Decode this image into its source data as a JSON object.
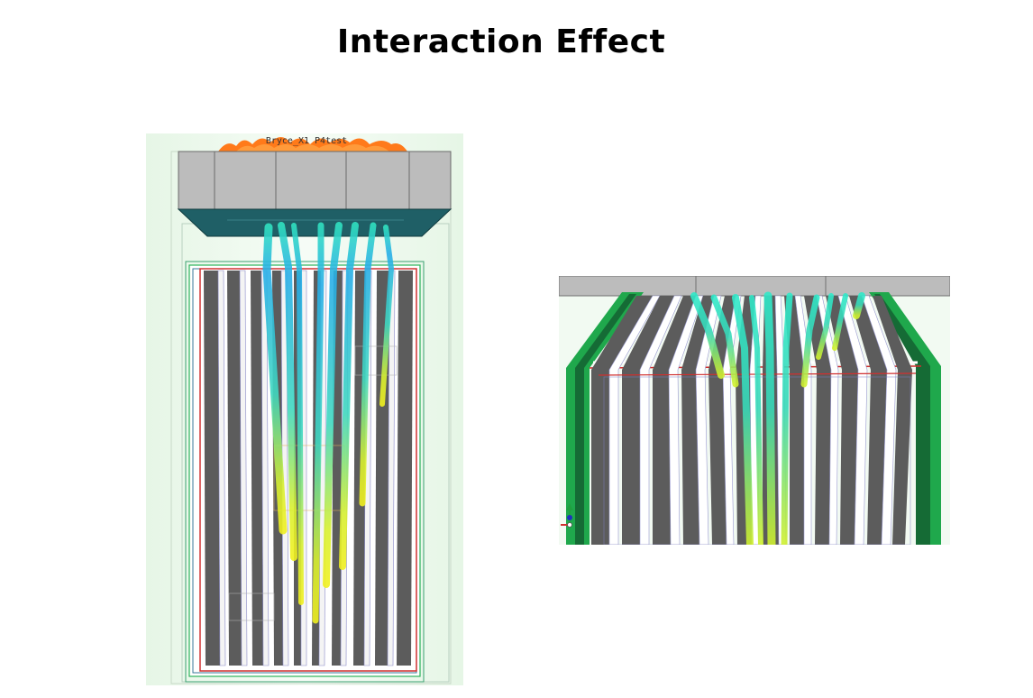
{
  "slide": {
    "title": "Interaction Effect"
  },
  "left_view": {
    "label": "Bryce_X1 P4test",
    "plate_count": 16
  },
  "right_view": {
    "plate_count": 16
  },
  "colors": {
    "background_tint": "#eef8ee",
    "deck_gray": "#bcbcbc",
    "deck_teal": "#1f5f66",
    "plate_dark": "#5c5c5c",
    "plate_light": "#ffffff",
    "frame_green": "#2bb35a",
    "frame_red": "#d03030",
    "fire_orange": "#ff7a1a",
    "flow_cyan": "#2ab8e8",
    "flow_yellow": "#e0f020"
  }
}
